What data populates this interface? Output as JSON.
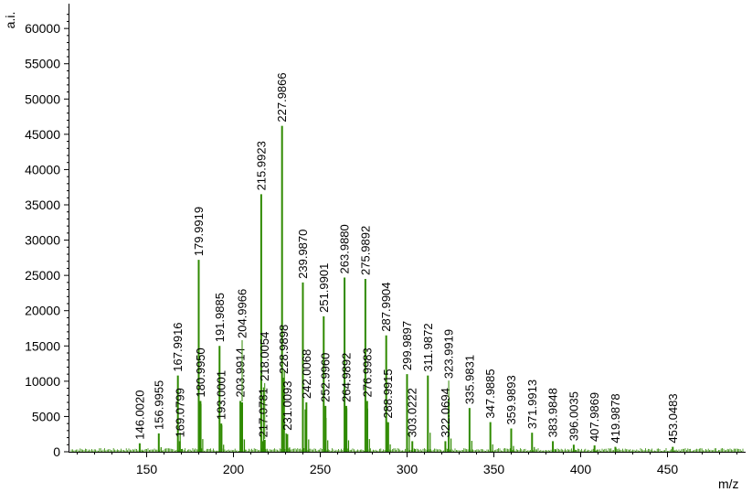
{
  "chart_data": {
    "type": "bar",
    "title": "",
    "xlabel": "m/z",
    "ylabel": "a.i.",
    "xlim": [
      105,
      495
    ],
    "ylim": [
      0,
      63000
    ],
    "x_ticks": [
      150,
      200,
      250,
      300,
      350,
      400,
      450
    ],
    "y_ticks": [
      0,
      5000,
      10000,
      15000,
      20000,
      25000,
      30000,
      35000,
      40000,
      45000,
      50000,
      55000,
      60000
    ],
    "grid": false,
    "legend": "none",
    "colors": {
      "peak": "#2f8a00",
      "axis": "#000000",
      "leader": "#2f8a00"
    },
    "series": [
      {
        "values": [
          {
            "x": 146.002,
            "y": 1200,
            "label": "146.0020"
          },
          {
            "x": 156.9955,
            "y": 2600,
            "label": "156.9955"
          },
          {
            "x": 167.9916,
            "y": 10800,
            "label": "167.9916"
          },
          {
            "x": 169.0799,
            "y": 1500,
            "label": "169.0799"
          },
          {
            "x": 179.9919,
            "y": 27200,
            "label": "179.9919"
          },
          {
            "x": 180.995,
            "y": 7200,
            "label": "180.9950"
          },
          {
            "x": 191.9885,
            "y": 15000,
            "label": "191.9885"
          },
          {
            "x": 193.0001,
            "y": 4000,
            "label": "193.0001"
          },
          {
            "x": 203.9914,
            "y": 7200,
            "label": "203.9914"
          },
          {
            "x": 204.9966,
            "y": 7000,
            "label": "204.9966"
          },
          {
            "x": 215.9923,
            "y": 36500,
            "label": "215.9923"
          },
          {
            "x": 217.0781,
            "y": 1500,
            "label": "217.0781"
          },
          {
            "x": 218.0054,
            "y": 1700,
            "label": "218.0054"
          },
          {
            "x": 227.9866,
            "y": 46200,
            "label": "227.9866"
          },
          {
            "x": 228.9898,
            "y": 10500,
            "label": "228.9898"
          },
          {
            "x": 231.0093,
            "y": 2500,
            "label": "231.0093"
          },
          {
            "x": 239.987,
            "y": 24000,
            "label": "239.9870"
          },
          {
            "x": 242.0068,
            "y": 7000,
            "label": "242.0068"
          },
          {
            "x": 251.9901,
            "y": 19200,
            "label": "251.9901"
          },
          {
            "x": 252.996,
            "y": 6500,
            "label": "252.9960"
          },
          {
            "x": 263.988,
            "y": 24700,
            "label": "263.9880"
          },
          {
            "x": 264.9892,
            "y": 6500,
            "label": "264.9892"
          },
          {
            "x": 275.9892,
            "y": 24500,
            "label": "275.9892"
          },
          {
            "x": 276.9983,
            "y": 7200,
            "label": "276.9983"
          },
          {
            "x": 287.9904,
            "y": 16500,
            "label": "287.9904"
          },
          {
            "x": 288.9915,
            "y": 4200,
            "label": "288.9915"
          },
          {
            "x": 299.9897,
            "y": 11000,
            "label": "299.9897"
          },
          {
            "x": 303.0222,
            "y": 1500,
            "label": "303.0222"
          },
          {
            "x": 311.9872,
            "y": 10800,
            "label": "311.9872"
          },
          {
            "x": 322.0694,
            "y": 1500,
            "label": "322.0694"
          },
          {
            "x": 323.9919,
            "y": 7500,
            "label": "323.9919"
          },
          {
            "x": 335.9831,
            "y": 6200,
            "label": "335.9831"
          },
          {
            "x": 347.9885,
            "y": 4200,
            "label": "347.9885"
          },
          {
            "x": 359.9893,
            "y": 3300,
            "label": "359.9893"
          },
          {
            "x": 371.9913,
            "y": 2700,
            "label": "371.9913"
          },
          {
            "x": 383.9848,
            "y": 1500,
            "label": "383.9848"
          },
          {
            "x": 396.0035,
            "y": 1000,
            "label": "396.0035"
          },
          {
            "x": 407.9869,
            "y": 900,
            "label": "407.9869"
          },
          {
            "x": 419.9878,
            "y": 700,
            "label": "419.9878"
          },
          {
            "x": 453.0483,
            "y": 700,
            "label": "453.0483"
          }
        ]
      }
    ]
  }
}
